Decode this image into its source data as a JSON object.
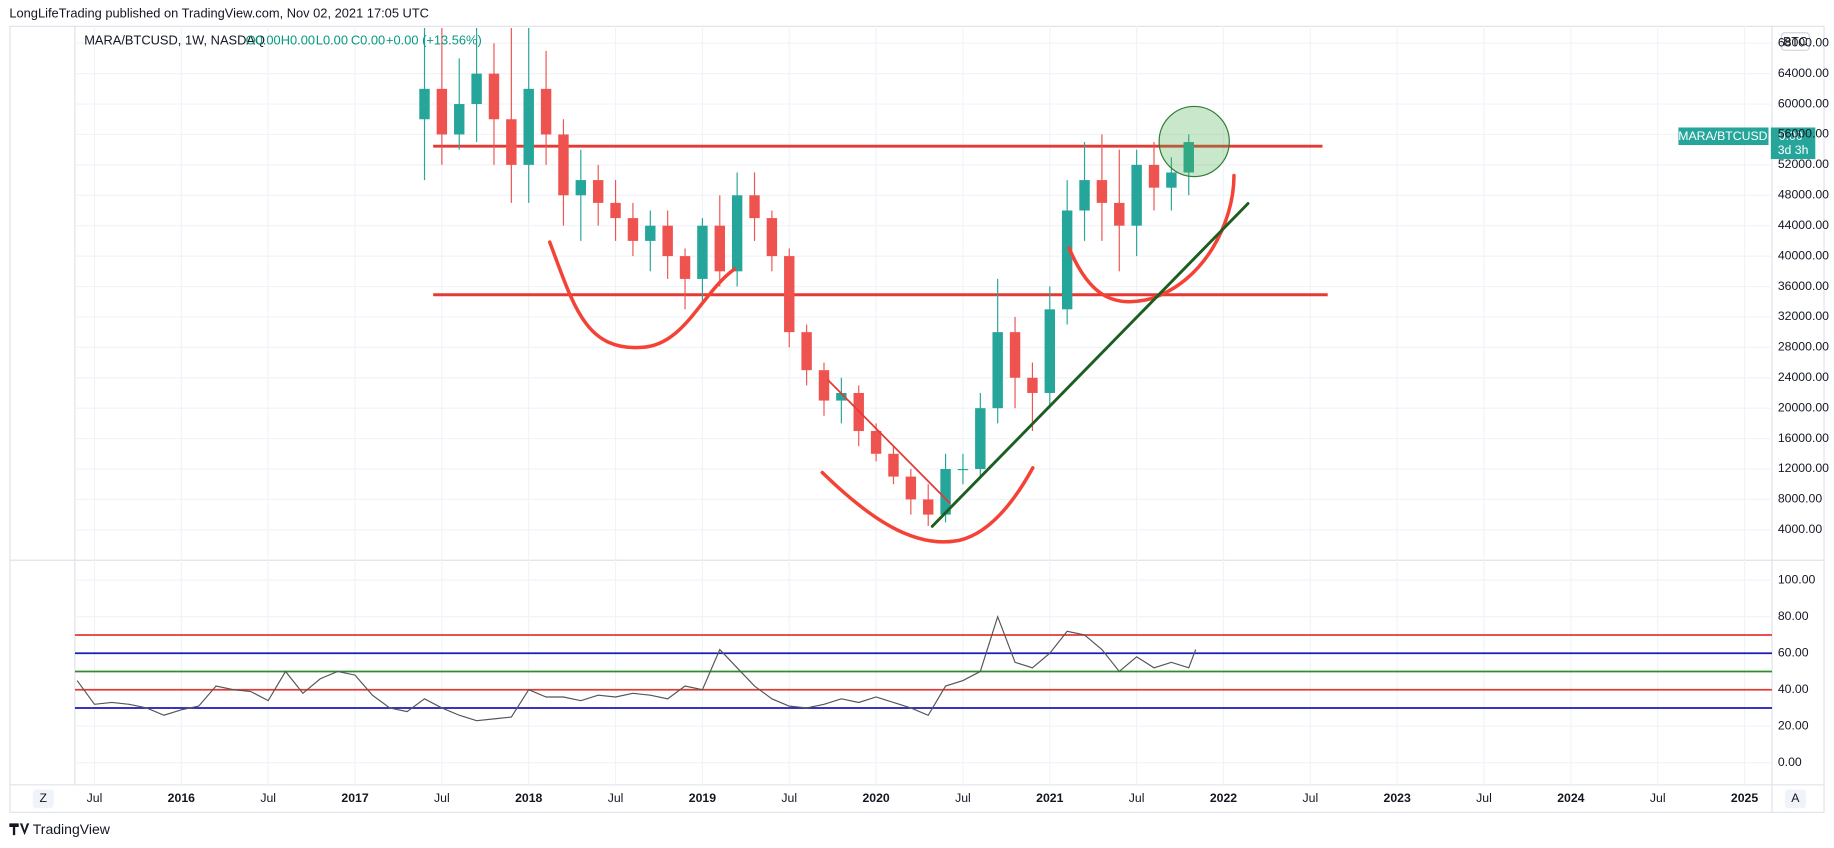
{
  "header": "LongLifeTrading published on TradingView.com, Nov 02, 2021 17:05 UTC",
  "footer": "TradingView",
  "buttons": {
    "left": "Z",
    "right": "A"
  },
  "currency": "BTC",
  "price_tag": {
    "symbol": "MARA/BTCUSD",
    "price": "0.00",
    "countdown": "3d 3h"
  },
  "chart_data": [
    {
      "type": "candlestick",
      "title": "MARA/BTCUSD, 1W, NASDAQ",
      "legend_values": [
        "O0.00",
        "H0.00",
        "L0.00",
        "C0.00",
        "+0.00 (+13.56%)"
      ],
      "up_color": "#26a69a",
      "down_color": "#ef5350",
      "grid": true,
      "x": [
        2017.4,
        2017.5,
        2017.6,
        2017.7,
        2017.8,
        2017.9,
        2018.0,
        2018.1,
        2018.2,
        2018.3,
        2018.4,
        2018.5,
        2018.6,
        2018.7,
        2018.8,
        2018.9,
        2019.0,
        2019.1,
        2019.2,
        2019.3,
        2019.4,
        2019.5,
        2019.6,
        2019.7,
        2019.8,
        2019.9,
        2020.0,
        2020.1,
        2020.2,
        2020.3,
        2020.4,
        2020.5,
        2020.6,
        2020.7,
        2020.8,
        2020.9,
        2021.0,
        2021.1,
        2021.2,
        2021.3,
        2021.4,
        2021.5,
        2021.6,
        2021.7,
        2021.8
      ],
      "open": [
        58000,
        62000,
        56000,
        60000,
        64000,
        58000,
        52000,
        62000,
        56000,
        48000,
        50000,
        47000,
        45000,
        42000,
        44000,
        40000,
        37000,
        44000,
        38000,
        48000,
        45000,
        40000,
        30000,
        25000,
        21000,
        22000,
        17000,
        14000,
        11000,
        8000,
        6000,
        12000,
        12000,
        20000,
        30000,
        24000,
        22000,
        33000,
        46000,
        50000,
        47000,
        44000,
        52000,
        49000,
        51000
      ],
      "high": [
        70000,
        70000,
        66000,
        70000,
        68000,
        70000,
        70000,
        67000,
        58000,
        54000,
        52000,
        50000,
        47000,
        46000,
        46000,
        41000,
        45000,
        48000,
        51000,
        51000,
        46000,
        41000,
        31000,
        26000,
        24000,
        23000,
        18000,
        15000,
        12000,
        10000,
        14000,
        14000,
        22000,
        37000,
        32000,
        26000,
        36000,
        50000,
        55000,
        56000,
        54000,
        54000,
        55000,
        53000,
        56000
      ],
      "low": [
        50000,
        52000,
        54000,
        55000,
        52000,
        47000,
        47000,
        52000,
        44000,
        42000,
        44000,
        42000,
        40000,
        38000,
        37000,
        33000,
        34000,
        36000,
        36000,
        42000,
        38000,
        28000,
        23000,
        19000,
        18000,
        15000,
        13000,
        10000,
        6000,
        4500,
        5000,
        10000,
        11000,
        18000,
        20000,
        17000,
        20000,
        31000,
        42000,
        42000,
        38000,
        40000,
        46000,
        46000,
        48000
      ],
      "close": [
        62000,
        56000,
        60000,
        64000,
        58000,
        52000,
        62000,
        56000,
        48000,
        50000,
        47000,
        45000,
        42000,
        44000,
        40000,
        37000,
        44000,
        38000,
        48000,
        45000,
        40000,
        30000,
        25000,
        21000,
        22000,
        17000,
        14000,
        11000,
        8000,
        6000,
        12000,
        12000,
        20000,
        30000,
        24000,
        22000,
        33000,
        46000,
        50000,
        47000,
        44000,
        52000,
        49000,
        51000,
        55000
      ],
      "horizontal_lines": [
        {
          "value": 54460,
          "from": 2017.45,
          "to": 2022.57,
          "color": "#e53935"
        },
        {
          "value": 34920,
          "from": 2017.45,
          "to": 2022.6,
          "color": "#e53935"
        }
      ],
      "xlim": [
        2015.387,
        2025.158
      ],
      "xticks": [
        {
          "value": 2015.5,
          "label": "Jul"
        },
        2016,
        {
          "value": 2016.5,
          "label": "Jul"
        },
        2017,
        {
          "value": 2017.5,
          "label": "Jul"
        },
        2018,
        {
          "value": 2018.5,
          "label": "Jul"
        },
        2019,
        {
          "value": 2019.5,
          "label": "Jul"
        },
        2020,
        {
          "value": 2020.5,
          "label": "Jul"
        },
        2021,
        {
          "value": 2021.5,
          "label": "Jul"
        },
        2022,
        {
          "value": 2022.5,
          "label": "Jul"
        },
        2023,
        {
          "value": 2023.5,
          "label": "Jul"
        },
        2024,
        {
          "value": 2024.5,
          "label": "Jul"
        },
        2025
      ],
      "ylim": [
        150,
        70300
      ],
      "yticks": [
        {
          "value": 4000,
          "label": "4000.00"
        },
        {
          "value": 8000,
          "label": "8000.00"
        },
        {
          "value": 12000,
          "label": "12000.00"
        },
        {
          "value": 16000,
          "label": "16000.00"
        },
        {
          "value": 20000,
          "label": "20000.00"
        },
        {
          "value": 24000,
          "label": "24000.00"
        },
        {
          "value": 28000,
          "label": "28000.00"
        },
        {
          "value": 32000,
          "label": "32000.00"
        },
        {
          "value": 36000,
          "label": "36000.00"
        },
        {
          "value": 40000,
          "label": "40000.00"
        },
        {
          "value": 44000,
          "label": "44000.00"
        },
        {
          "value": 48000,
          "label": "48000.00"
        },
        {
          "value": 52000,
          "label": "52000.00"
        },
        {
          "value": 56000,
          "label": "56000.00"
        },
        {
          "value": 60000,
          "label": "60000.00"
        },
        {
          "value": 64000,
          "label": "64000.00"
        },
        {
          "value": 68000,
          "label": "68000.00"
        }
      ]
    },
    {
      "type": "line",
      "color": "#555555",
      "grid": true,
      "x": [
        2015.4,
        2015.5,
        2015.6,
        2015.7,
        2015.8,
        2015.9,
        2016.0,
        2016.1,
        2016.2,
        2016.3,
        2016.4,
        2016.5,
        2016.6,
        2016.7,
        2016.8,
        2016.9,
        2017.0,
        2017.1,
        2017.2,
        2017.3,
        2017.4,
        2017.5,
        2017.6,
        2017.7,
        2017.8,
        2017.9,
        2018.0,
        2018.1,
        2018.2,
        2018.3,
        2018.4,
        2018.5,
        2018.6,
        2018.7,
        2018.8,
        2018.9,
        2019.0,
        2019.1,
        2019.2,
        2019.3,
        2019.4,
        2019.5,
        2019.6,
        2019.7,
        2019.8,
        2019.9,
        2020.0,
        2020.1,
        2020.2,
        2020.3,
        2020.4,
        2020.5,
        2020.6,
        2020.7,
        2020.8,
        2020.9,
        2021.0,
        2021.1,
        2021.2,
        2021.3,
        2021.4,
        2021.5,
        2021.6,
        2021.7,
        2021.8,
        2021.84
      ],
      "values": [
        45,
        32,
        33,
        32,
        30,
        26,
        29,
        31,
        42,
        40,
        39,
        34,
        50,
        38,
        46,
        50,
        48,
        37,
        30,
        28,
        35,
        30,
        26,
        23,
        24,
        25,
        40,
        36,
        36,
        34,
        37,
        36,
        38,
        37,
        35,
        42,
        40,
        62,
        52,
        42,
        35,
        31,
        30,
        32,
        35,
        33,
        36,
        33,
        30,
        26,
        42,
        45,
        50,
        80,
        55,
        52,
        60,
        72,
        70,
        62,
        50,
        58,
        52,
        55,
        52,
        62
      ],
      "levels": [
        {
          "value": 70,
          "color": "#e53935"
        },
        {
          "value": 60,
          "color": "#1a1ab8"
        },
        {
          "value": 50,
          "color": "#2e8b2e"
        },
        {
          "value": 40,
          "color": "#e53935"
        },
        {
          "value": 30,
          "color": "#1a1ab8"
        }
      ],
      "ylim": [
        -11.5,
        110.3
      ],
      "yticks": [
        {
          "value": 0,
          "label": "0.00"
        },
        {
          "value": 20,
          "label": "20.00"
        },
        {
          "value": 40,
          "label": "40.00"
        },
        {
          "value": 60,
          "label": "60.00"
        },
        {
          "value": 80,
          "label": "80.00"
        },
        {
          "value": 100,
          "label": "100.00"
        }
      ]
    }
  ]
}
